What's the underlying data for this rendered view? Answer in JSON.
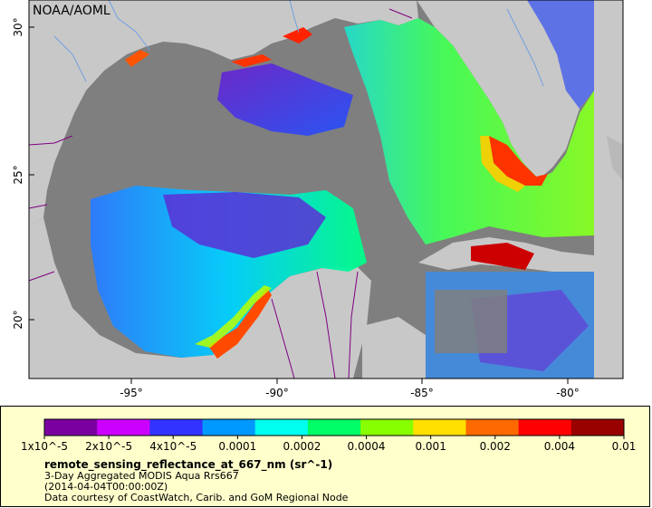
{
  "provider_label": "NOAA/AOML",
  "lat_ticks": [
    "30°",
    "25°",
    "20°"
  ],
  "lon_ticks": [
    "-95°",
    "-90°",
    "-85°",
    "-80°"
  ],
  "colorbar": {
    "ticks": [
      "1x10^-5",
      "2x10^-5",
      "4x10^-5",
      "0.0001",
      "0.0002",
      "0.0004",
      "0.001",
      "0.002",
      "0.004",
      "0.01"
    ],
    "colors": [
      "#7a00a0",
      "#cc00ff",
      "#3333ff",
      "#0099ff",
      "#00ffee",
      "#00ff66",
      "#88ff00",
      "#ffe000",
      "#ff6a00",
      "#ff0000",
      "#990000"
    ]
  },
  "legend": {
    "variable": "remote_sensing_reflectance_at_667_nm (sr^-1)",
    "line2": "3-Day Aggregated MODIS Aqua Rrs667",
    "line3": "(2014-04-04T00:00:00Z)",
    "line4": "Data courtesy of CoastWatch, Carib. and GoM Regional Node"
  },
  "colors": {
    "ocean_nodata": "#7f7f7f",
    "land": "#c8c8c8",
    "legend_bg": "#ffffcc",
    "boundary": "#800080",
    "river": "#6fa0e0"
  }
}
